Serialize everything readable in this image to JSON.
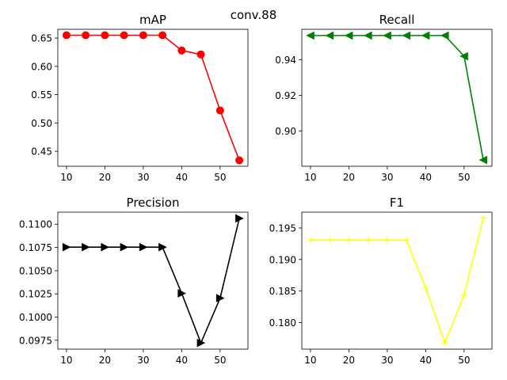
{
  "figure_title": "conv.88",
  "chart_data": [
    {
      "type": "line",
      "title": "mAP",
      "x": [
        10,
        15,
        20,
        25,
        30,
        35,
        40,
        45,
        50,
        55
      ],
      "series": [
        {
          "values": [
            0.655,
            0.655,
            0.655,
            0.655,
            0.655,
            0.655,
            0.628,
            0.621,
            0.522,
            0.434
          ],
          "color": "#ff0000",
          "marker": "circle"
        }
      ],
      "xlim": [
        7.75,
        57.25
      ],
      "ylim": [
        0.4235,
        0.6655
      ],
      "xticks": [
        10,
        20,
        30,
        40,
        50
      ],
      "yticks": [
        0.45,
        0.5,
        0.55,
        0.6,
        0.65
      ],
      "ytick_labels": [
        "0.45",
        "0.50",
        "0.55",
        "0.60",
        "0.65"
      ],
      "xlabel": "",
      "ylabel": "",
      "grid": false
    },
    {
      "type": "line",
      "title": "Recall",
      "x": [
        10,
        15,
        20,
        25,
        30,
        35,
        40,
        45,
        50,
        55
      ],
      "series": [
        {
          "values": [
            0.9535,
            0.9535,
            0.9535,
            0.9535,
            0.9535,
            0.9535,
            0.9535,
            0.9535,
            0.9419,
            0.8837
          ],
          "color": "#008000",
          "marker": "triangle-left"
        }
      ],
      "xlim": [
        7.75,
        57.25
      ],
      "ylim": [
        0.8802,
        0.957
      ],
      "xticks": [
        10,
        20,
        30,
        40,
        50
      ],
      "yticks": [
        0.9,
        0.92,
        0.94
      ],
      "ytick_labels": [
        "0.90",
        "0.92",
        "0.94"
      ],
      "xlabel": "",
      "ylabel": "",
      "grid": false
    },
    {
      "type": "line",
      "title": "Precision",
      "x": [
        10,
        15,
        20,
        25,
        30,
        35,
        40,
        45,
        50,
        55
      ],
      "series": [
        {
          "values": [
            0.10753,
            0.10753,
            0.10753,
            0.10753,
            0.10753,
            0.10753,
            0.10256,
            0.09722,
            0.10204,
            0.11063
          ],
          "color": "#000000",
          "marker": "triangle-right"
        }
      ],
      "xlim": [
        7.75,
        57.25
      ],
      "ylim": [
        0.09655,
        0.1113
      ],
      "xticks": [
        10,
        20,
        30,
        40,
        50
      ],
      "yticks": [
        0.0975,
        0.1,
        0.1025,
        0.105,
        0.1075,
        0.11
      ],
      "ytick_labels": [
        "0.0975",
        "0.1000",
        "0.1025",
        "0.1050",
        "0.1075",
        "0.1100"
      ],
      "xlabel": "",
      "ylabel": "",
      "grid": false
    },
    {
      "type": "line",
      "title": "F1",
      "x": [
        10,
        15,
        20,
        25,
        30,
        35,
        40,
        45,
        50,
        55
      ],
      "series": [
        {
          "values": [
            0.1931,
            0.1931,
            0.1931,
            0.1931,
            0.1931,
            0.1931,
            0.1855,
            0.1768,
            0.1843,
            0.1966
          ],
          "color": "#ffff00",
          "marker": "plus"
        }
      ],
      "xlim": [
        7.75,
        57.25
      ],
      "ylim": [
        0.1758,
        0.1975
      ],
      "xticks": [
        10,
        20,
        30,
        40,
        50
      ],
      "yticks": [
        0.18,
        0.185,
        0.19,
        0.195
      ],
      "ytick_labels": [
        "0.180",
        "0.185",
        "0.190",
        "0.195"
      ],
      "xlabel": "",
      "ylabel": "",
      "grid": false
    }
  ]
}
